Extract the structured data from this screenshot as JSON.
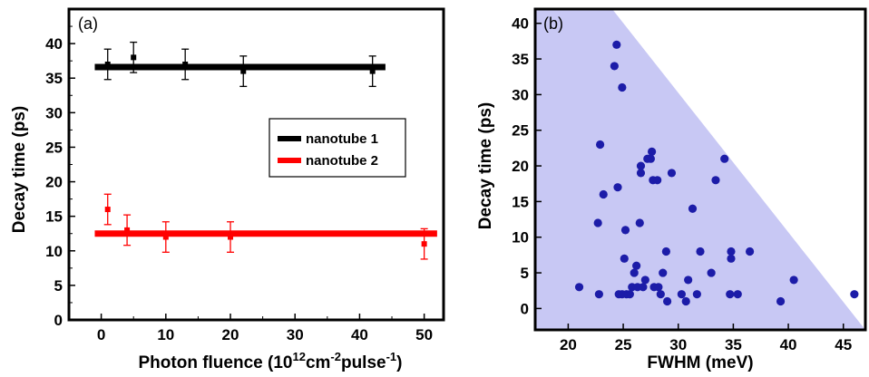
{
  "chart_data": [
    {
      "type": "scatter",
      "panel_label": "(a)",
      "xlabel": "Photon fluence (10",
      "xlabel_sup1": "12",
      "xlabel_mid": "cm",
      "xlabel_sup2": "-2",
      "xlabel_mid2": "pulse",
      "xlabel_sup3": "-1",
      "xlabel_end": ")",
      "ylabel": "Decay time (ps)",
      "xlim": [
        -5,
        53
      ],
      "ylim": [
        0,
        45
      ],
      "xticks": [
        0,
        10,
        20,
        30,
        40,
        50
      ],
      "yticks": [
        0,
        5,
        10,
        15,
        20,
        25,
        30,
        35,
        40
      ],
      "legend_position": "right-middle",
      "series": [
        {
          "name": "nanotube 1",
          "color": "#000000",
          "fit_level": 36.6,
          "fit_x_range": [
            -1,
            44
          ],
          "points": [
            {
              "x": 1,
              "y": 37,
              "err": 2.2
            },
            {
              "x": 5,
              "y": 38,
              "err": 2.2
            },
            {
              "x": 13,
              "y": 37,
              "err": 2.2
            },
            {
              "x": 22,
              "y": 36,
              "err": 2.2
            },
            {
              "x": 42,
              "y": 36,
              "err": 2.2
            }
          ]
        },
        {
          "name": "nanotube 2",
          "color": "#ff0000",
          "fit_level": 12.5,
          "fit_x_range": [
            -1,
            52
          ],
          "points": [
            {
              "x": 1,
              "y": 16,
              "err": 2.2
            },
            {
              "x": 4,
              "y": 13,
              "err": 2.2
            },
            {
              "x": 10,
              "y": 12,
              "err": 2.2
            },
            {
              "x": 20,
              "y": 12,
              "err": 2.2
            },
            {
              "x": 50,
              "y": 11,
              "err": 2.2
            }
          ]
        }
      ]
    },
    {
      "type": "scatter",
      "panel_label": "(b)",
      "xlabel": "FWHM (meV)",
      "ylabel": "Decay time (ps)",
      "xlim": [
        17,
        47
      ],
      "ylim": [
        -3,
        42
      ],
      "xticks": [
        20,
        25,
        30,
        35,
        40,
        45
      ],
      "yticks": [
        0,
        5,
        10,
        15,
        20,
        25,
        30,
        35,
        40
      ],
      "point_color": "#1c1ca8",
      "shade_color": "#c8c8f4",
      "shaded_region": {
        "x_at_top": 24,
        "x_at_y0": 46.5
      },
      "points": [
        {
          "x": 21,
          "y": 3
        },
        {
          "x": 22.8,
          "y": 2
        },
        {
          "x": 22.7,
          "y": 12
        },
        {
          "x": 22.9,
          "y": 23
        },
        {
          "x": 23.2,
          "y": 16
        },
        {
          "x": 24.2,
          "y": 34
        },
        {
          "x": 24.4,
          "y": 37
        },
        {
          "x": 24.9,
          "y": 31
        },
        {
          "x": 24.5,
          "y": 17
        },
        {
          "x": 24.6,
          "y": 2
        },
        {
          "x": 24.9,
          "y": 2
        },
        {
          "x": 25.3,
          "y": 2
        },
        {
          "x": 25.6,
          "y": 2
        },
        {
          "x": 25.2,
          "y": 11
        },
        {
          "x": 25.1,
          "y": 7
        },
        {
          "x": 25.8,
          "y": 3
        },
        {
          "x": 26.0,
          "y": 5
        },
        {
          "x": 26.3,
          "y": 3
        },
        {
          "x": 26.2,
          "y": 6
        },
        {
          "x": 26.5,
          "y": 12
        },
        {
          "x": 26.6,
          "y": 19
        },
        {
          "x": 26.6,
          "y": 20
        },
        {
          "x": 26.8,
          "y": 3
        },
        {
          "x": 27.0,
          "y": 4
        },
        {
          "x": 27.2,
          "y": 21
        },
        {
          "x": 27.5,
          "y": 21
        },
        {
          "x": 27.6,
          "y": 22
        },
        {
          "x": 27.7,
          "y": 18
        },
        {
          "x": 27.8,
          "y": 3
        },
        {
          "x": 28.1,
          "y": 18
        },
        {
          "x": 28.2,
          "y": 3
        },
        {
          "x": 28.4,
          "y": 2
        },
        {
          "x": 28.6,
          "y": 5
        },
        {
          "x": 28.9,
          "y": 8
        },
        {
          "x": 29.0,
          "y": 1
        },
        {
          "x": 29.4,
          "y": 19
        },
        {
          "x": 30.3,
          "y": 2
        },
        {
          "x": 30.7,
          "y": 1
        },
        {
          "x": 30.9,
          "y": 4
        },
        {
          "x": 31.3,
          "y": 14
        },
        {
          "x": 31.7,
          "y": 2
        },
        {
          "x": 32.0,
          "y": 8
        },
        {
          "x": 33.0,
          "y": 5
        },
        {
          "x": 33.4,
          "y": 18
        },
        {
          "x": 34.2,
          "y": 21
        },
        {
          "x": 34.7,
          "y": 2
        },
        {
          "x": 34.8,
          "y": 7
        },
        {
          "x": 34.8,
          "y": 8
        },
        {
          "x": 35.4,
          "y": 2
        },
        {
          "x": 36.5,
          "y": 8
        },
        {
          "x": 39.3,
          "y": 1
        },
        {
          "x": 40.5,
          "y": 4
        },
        {
          "x": 46.0,
          "y": 2
        }
      ]
    }
  ]
}
